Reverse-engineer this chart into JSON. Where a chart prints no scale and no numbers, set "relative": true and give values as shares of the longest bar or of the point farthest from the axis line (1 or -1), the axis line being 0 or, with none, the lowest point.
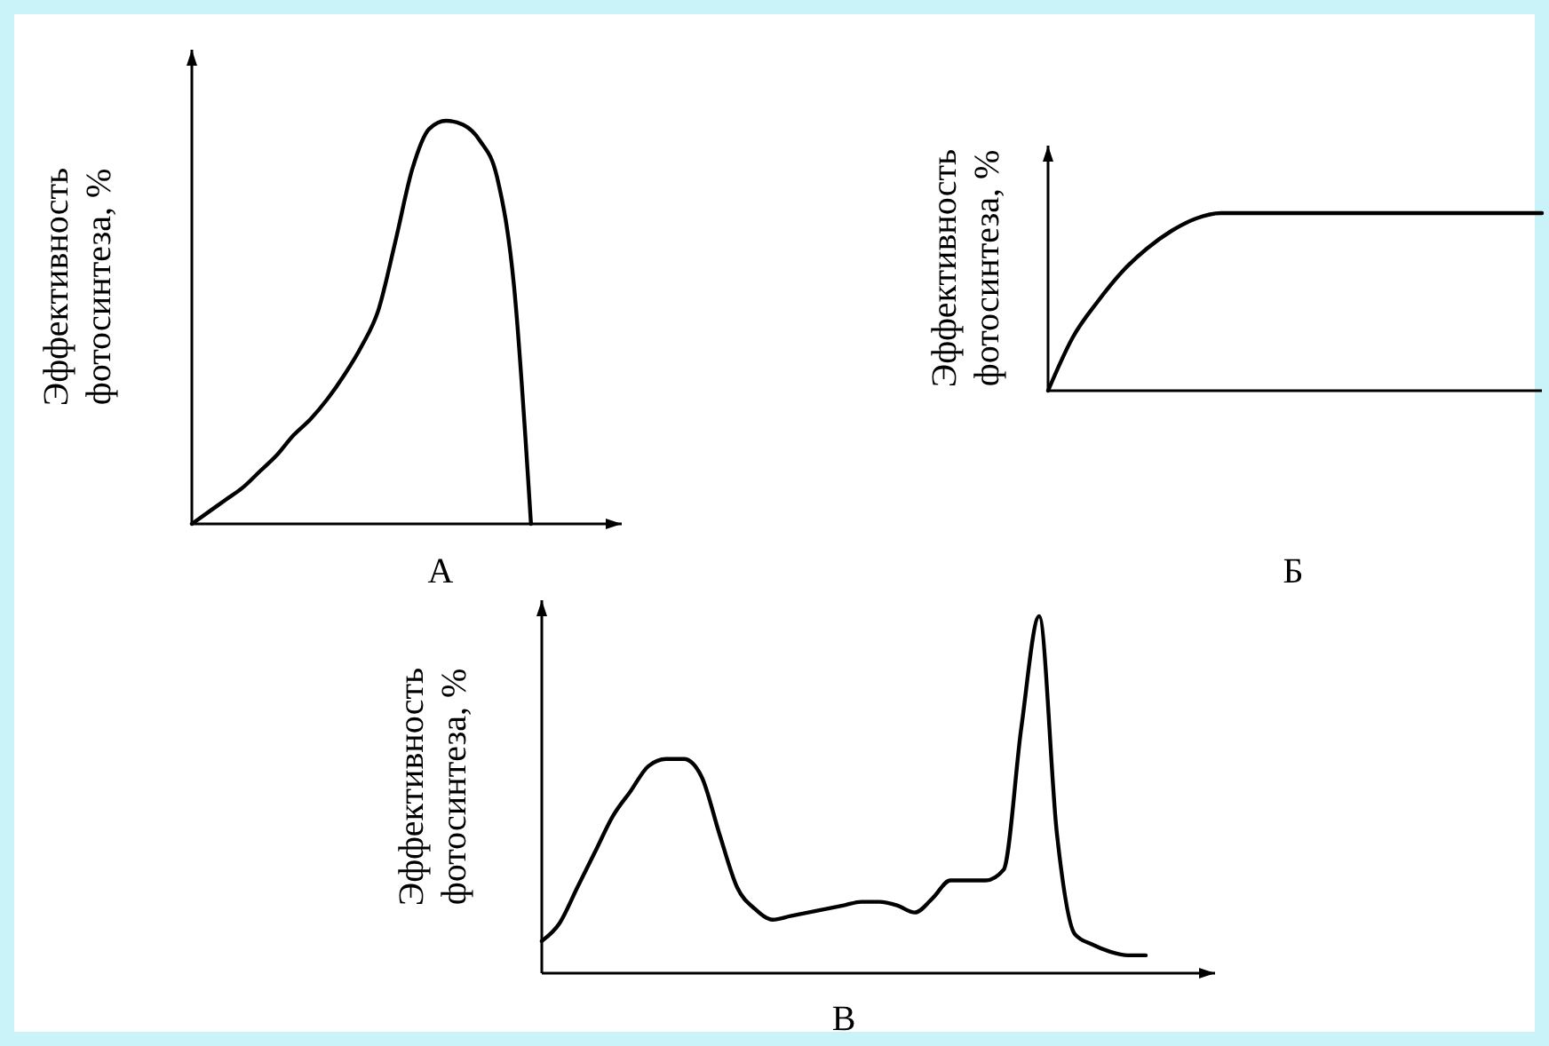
{
  "chart_data": [
    {
      "type": "line",
      "relative": true,
      "xlabel": "А",
      "ylabel": "Эффективность фотосинтеза, %",
      "color": "#000000",
      "categories": [
        null,
        null,
        null,
        null,
        null,
        null,
        null,
        null,
        null,
        null,
        null,
        null,
        null,
        null,
        null,
        null,
        null,
        null,
        null,
        null,
        null,
        null,
        null
      ],
      "values": [
        0,
        0.03,
        0.06,
        0.09,
        0.13,
        0.17,
        0.22,
        0.26,
        0.31,
        0.37,
        0.44,
        0.53,
        0.7,
        0.88,
        0.98,
        1,
        0.99,
        0.95,
        0.86,
        0.59,
        0,
        null,
        null
      ]
    },
    {
      "type": "line",
      "relative": true,
      "xlabel": "Б",
      "ylabel": "Эффективность фотосинтеза, %",
      "color": "#000000",
      "categories": [
        null,
        null,
        null,
        null,
        null,
        null,
        null,
        null,
        null,
        null,
        null,
        null,
        null,
        null,
        null,
        null,
        null,
        null,
        null,
        null,
        null
      ],
      "values": [
        0,
        0.3,
        0.5,
        0.67,
        0.8,
        0.9,
        0.97,
        1,
        1,
        1,
        1,
        1,
        1,
        1,
        1,
        1,
        1,
        1,
        1,
        1,
        1
      ]
    },
    {
      "type": "line",
      "relative": true,
      "xlabel": "В",
      "ylabel": "Эффективность фотосинтеза, %",
      "color": "#000000",
      "categories": [
        null,
        null,
        null,
        null,
        null,
        null,
        null,
        null,
        null,
        null,
        null,
        null,
        null,
        null,
        null,
        null,
        null,
        null,
        null,
        null,
        null,
        null,
        null,
        null,
        null,
        null,
        null,
        null,
        null,
        null,
        null,
        null,
        null,
        null,
        null,
        null,
        null,
        null
      ],
      "values": [
        0.09,
        0.14,
        0.24,
        0.34,
        0.44,
        0.51,
        0.58,
        0.6,
        0.6,
        0.55,
        0.39,
        0.24,
        0.18,
        0.15,
        0.16,
        0.17,
        0.18,
        0.19,
        0.2,
        0.2,
        0.19,
        0.17,
        0.21,
        0.26,
        0.26,
        0.26,
        0.29,
        0.69,
        1,
        0.39,
        0.11,
        0.08,
        0.06,
        0.05,
        0.05,
        null,
        null,
        null
      ]
    }
  ]
}
